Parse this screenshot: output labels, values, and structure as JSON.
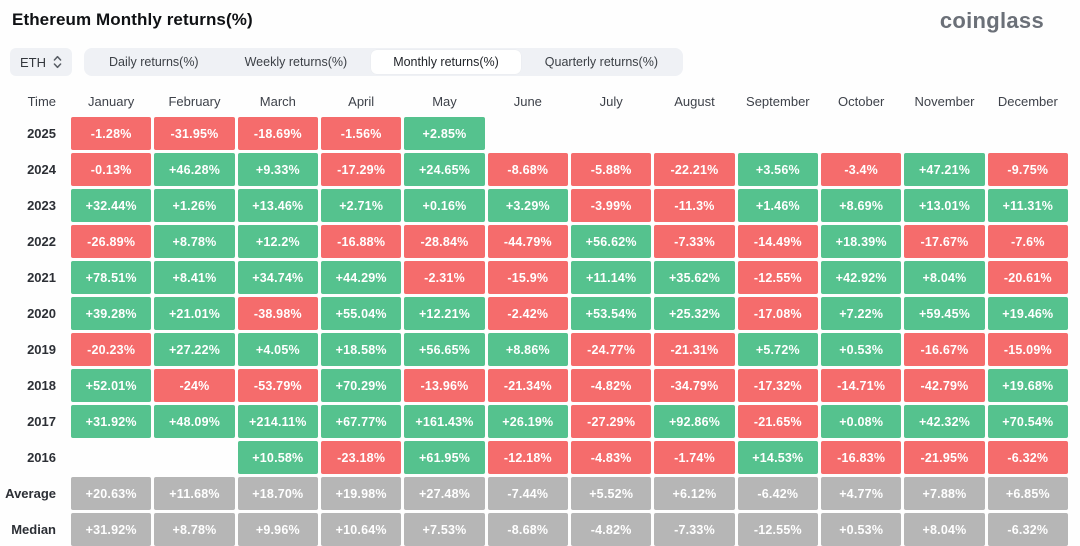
{
  "header": {
    "title": "Ethereum Monthly returns(%)",
    "brand": "coinglass"
  },
  "controls": {
    "symbol_select": {
      "label": "ETH"
    },
    "tabs": [
      {
        "label": "Daily returns(%)",
        "active": false
      },
      {
        "label": "Weekly returns(%)",
        "active": false
      },
      {
        "label": "Monthly returns(%)",
        "active": true
      },
      {
        "label": "Quarterly returns(%)",
        "active": false
      }
    ]
  },
  "colors": {
    "positive": "#55c28e",
    "negative": "#f56c6c",
    "summary": "#b6b6b6"
  },
  "table": {
    "time_header": "Time",
    "month_headers": [
      "January",
      "February",
      "March",
      "April",
      "May",
      "June",
      "July",
      "August",
      "September",
      "October",
      "November",
      "December"
    ],
    "rows": [
      {
        "label": "2025",
        "type": "year",
        "cells": [
          "-1.28%",
          "-31.95%",
          "-18.69%",
          "-1.56%",
          "+2.85%",
          "",
          "",
          "",
          "",
          "",
          "",
          ""
        ]
      },
      {
        "label": "2024",
        "type": "year",
        "cells": [
          "-0.13%",
          "+46.28%",
          "+9.33%",
          "-17.29%",
          "+24.65%",
          "-8.68%",
          "-5.88%",
          "-22.21%",
          "+3.56%",
          "-3.4%",
          "+47.21%",
          "-9.75%"
        ]
      },
      {
        "label": "2023",
        "type": "year",
        "cells": [
          "+32.44%",
          "+1.26%",
          "+13.46%",
          "+2.71%",
          "+0.16%",
          "+3.29%",
          "-3.99%",
          "-11.3%",
          "+1.46%",
          "+8.69%",
          "+13.01%",
          "+11.31%"
        ]
      },
      {
        "label": "2022",
        "type": "year",
        "cells": [
          "-26.89%",
          "+8.78%",
          "+12.2%",
          "-16.88%",
          "-28.84%",
          "-44.79%",
          "+56.62%",
          "-7.33%",
          "-14.49%",
          "+18.39%",
          "-17.67%",
          "-7.6%"
        ]
      },
      {
        "label": "2021",
        "type": "year",
        "cells": [
          "+78.51%",
          "+8.41%",
          "+34.74%",
          "+44.29%",
          "-2.31%",
          "-15.9%",
          "+11.14%",
          "+35.62%",
          "-12.55%",
          "+42.92%",
          "+8.04%",
          "-20.61%"
        ]
      },
      {
        "label": "2020",
        "type": "year",
        "cells": [
          "+39.28%",
          "+21.01%",
          "-38.98%",
          "+55.04%",
          "+12.21%",
          "-2.42%",
          "+53.54%",
          "+25.32%",
          "-17.08%",
          "+7.22%",
          "+59.45%",
          "+19.46%"
        ]
      },
      {
        "label": "2019",
        "type": "year",
        "cells": [
          "-20.23%",
          "+27.22%",
          "+4.05%",
          "+18.58%",
          "+56.65%",
          "+8.86%",
          "-24.77%",
          "-21.31%",
          "+5.72%",
          "+0.53%",
          "-16.67%",
          "-15.09%"
        ]
      },
      {
        "label": "2018",
        "type": "year",
        "cells": [
          "+52.01%",
          "-24%",
          "-53.79%",
          "+70.29%",
          "-13.96%",
          "-21.34%",
          "-4.82%",
          "-34.79%",
          "-17.32%",
          "-14.71%",
          "-42.79%",
          "+19.68%"
        ]
      },
      {
        "label": "2017",
        "type": "year",
        "cells": [
          "+31.92%",
          "+48.09%",
          "+214.11%",
          "+67.77%",
          "+161.43%",
          "+26.19%",
          "-27.29%",
          "+92.86%",
          "-21.65%",
          "+0.08%",
          "+42.32%",
          "+70.54%"
        ]
      },
      {
        "label": "2016",
        "type": "year",
        "cells": [
          "",
          "",
          "+10.58%",
          "-23.18%",
          "+61.95%",
          "-12.18%",
          "-4.83%",
          "-1.74%",
          "+14.53%",
          "-16.83%",
          "-21.95%",
          "-6.32%"
        ]
      },
      {
        "label": "Average",
        "type": "summary",
        "cells": [
          "+20.63%",
          "+11.68%",
          "+18.70%",
          "+19.98%",
          "+27.48%",
          "-7.44%",
          "+5.52%",
          "+6.12%",
          "-6.42%",
          "+4.77%",
          "+7.88%",
          "+6.85%"
        ]
      },
      {
        "label": "Median",
        "type": "summary",
        "cells": [
          "+31.92%",
          "+8.78%",
          "+9.96%",
          "+10.64%",
          "+7.53%",
          "-8.68%",
          "-4.82%",
          "-7.33%",
          "-12.55%",
          "+0.53%",
          "+8.04%",
          "-6.32%"
        ]
      }
    ]
  }
}
